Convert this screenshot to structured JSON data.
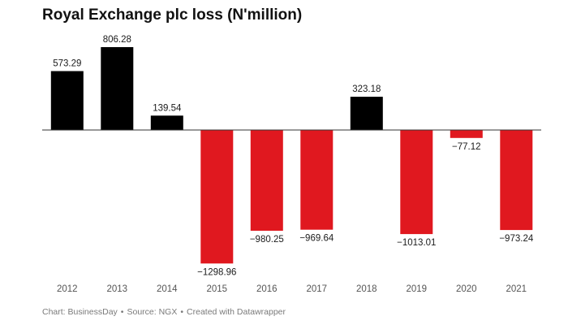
{
  "chart_data": {
    "type": "bar",
    "title": "Royal Exchange plc loss (N'million)",
    "categories": [
      "2012",
      "2013",
      "2014",
      "2015",
      "2016",
      "2017",
      "2018",
      "2019",
      "2020",
      "2021"
    ],
    "values": [
      573.29,
      806.28,
      139.54,
      -1298.96,
      -980.25,
      -969.64,
      323.18,
      -1013.01,
      -77.12,
      -973.24
    ],
    "value_labels": [
      "573.29",
      "806.28",
      "139.54",
      "−1298.96",
      "−980.25",
      "−969.64",
      "323.18",
      "−1013.01",
      "−77.12",
      "−973.24"
    ],
    "xlabel": "",
    "ylabel": "",
    "ylim": [
      -1298.96,
      806.28
    ],
    "grid": false,
    "colors": {
      "positive": "#000000",
      "negative": "#e0181f",
      "baseline": "#333333"
    }
  },
  "footer": {
    "chart_credit": "Chart: BusinessDay",
    "source": "Source: NGX",
    "created_with": "Created with Datawrapper",
    "separator": "•"
  }
}
